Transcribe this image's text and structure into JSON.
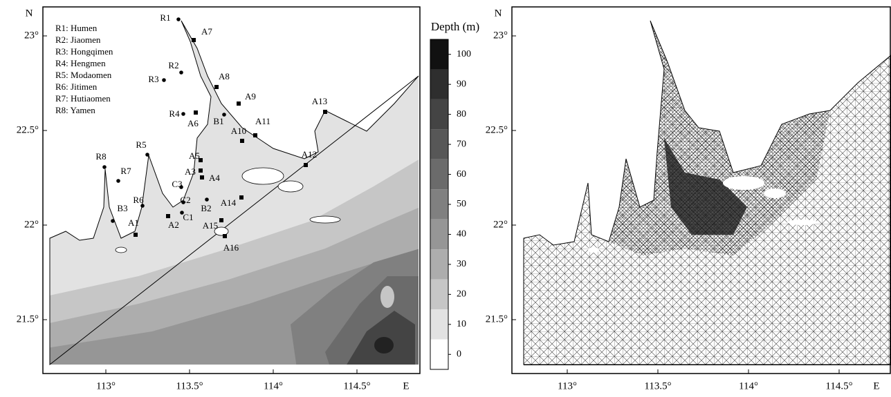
{
  "left_map": {
    "north_label": "N",
    "east_label": "E",
    "lat_ticks": [
      {
        "value": 23,
        "label": "23°"
      },
      {
        "value": 22.5,
        "label": "22.5°"
      },
      {
        "value": 22,
        "label": "22°"
      },
      {
        "value": 21.5,
        "label": "21.5°"
      }
    ],
    "lon_ticks": [
      {
        "value": 113,
        "label": "113°"
      },
      {
        "value": 113.5,
        "label": "113.5°"
      },
      {
        "value": 114,
        "label": "114°"
      },
      {
        "value": 114.5,
        "label": "114.5°"
      }
    ],
    "legend": [
      "R1: Humen",
      "R2: Jiaomen",
      "R3: Hongqimen",
      "R4: Hengmen",
      "R5: Modaomen",
      "R6: Jitimen",
      "R7: Hutiaomen",
      "R8: Yamen"
    ],
    "stations": [
      "R1",
      "A7",
      "R2",
      "R3",
      "A8",
      "A9",
      "R4",
      "A6",
      "B1",
      "A13",
      "A11",
      "A10",
      "R5",
      "A5",
      "A12",
      "A3",
      "A4",
      "R8",
      "R7",
      "C3",
      "B2",
      "A14",
      "R6",
      "C2",
      "B3",
      "C1",
      "A2",
      "A1",
      "A15",
      "A16"
    ],
    "colorbar": {
      "title": "Depth (m)",
      "ticks": [
        100,
        90,
        80,
        70,
        60,
        50,
        40,
        30,
        20,
        10,
        0
      ],
      "colors": [
        "#111111",
        "#2e2e2e",
        "#444444",
        "#575757",
        "#6b6b6b",
        "#808080",
        "#969696",
        "#adadad",
        "#c6c6c6",
        "#e2e2e2",
        "#ffffff"
      ]
    }
  },
  "right_map": {
    "north_label": "N",
    "east_label": "E",
    "lat_ticks": [
      {
        "value": 23,
        "label": "23°"
      },
      {
        "value": 22.5,
        "label": "22.5°"
      },
      {
        "value": 22,
        "label": "22°"
      },
      {
        "value": 21.5,
        "label": "21.5°"
      }
    ],
    "lon_ticks": [
      {
        "value": 113,
        "label": "113°"
      },
      {
        "value": 113.5,
        "label": "113.5°"
      },
      {
        "value": 114,
        "label": "114°"
      },
      {
        "value": 114.5,
        "label": "114.5°"
      }
    ]
  }
}
